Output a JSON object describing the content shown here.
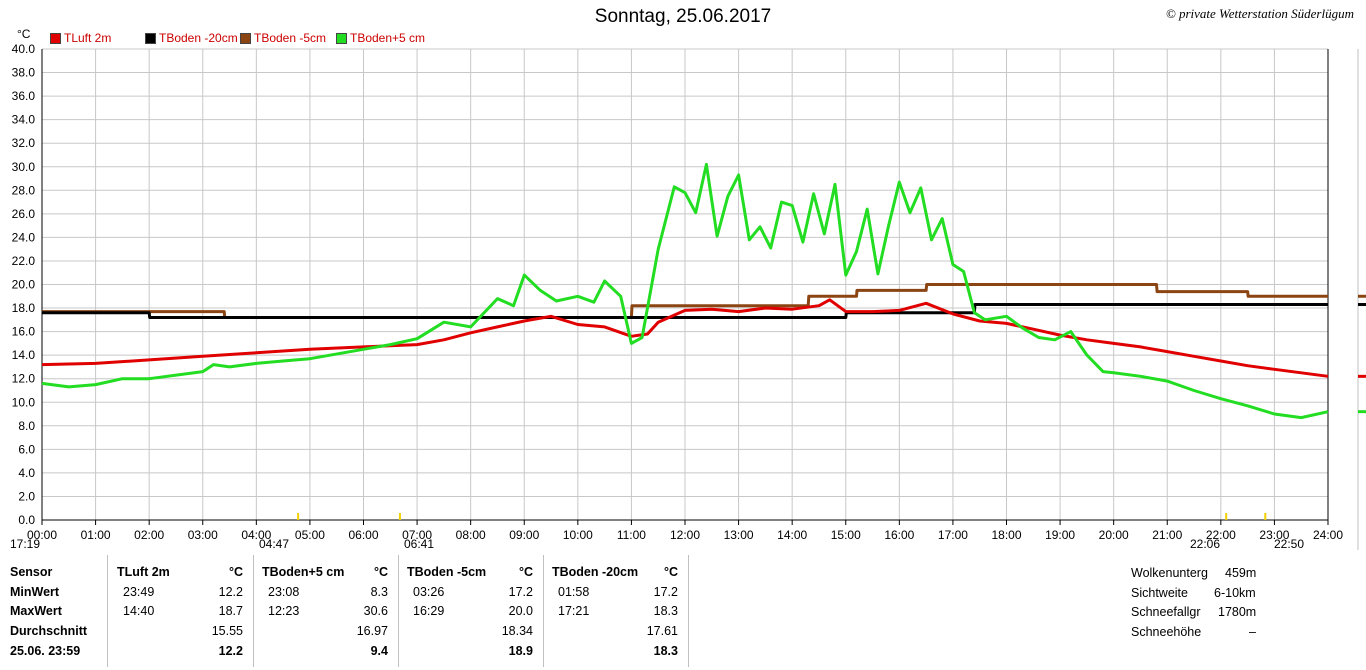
{
  "header": {
    "title": "Sonntag, 25.06.2017",
    "copyright": "© private Wetterstation Süderlügum"
  },
  "colors": {
    "tluft": "#e00000",
    "tboden20": "#000000",
    "tboden5": "#8b4513",
    "tbodenplus5": "#22dd22",
    "grid": "#c8c8c8",
    "red_text": "#cc0000"
  },
  "chart_data": {
    "type": "line",
    "ylabel": "°C",
    "ylim": [
      0,
      40
    ],
    "yticks": [
      "0.0",
      "2.0",
      "4.0",
      "6.0",
      "8.0",
      "10.0",
      "12.0",
      "14.0",
      "16.0",
      "18.0",
      "20.0",
      "22.0",
      "24.0",
      "26.0",
      "28.0",
      "30.0",
      "32.0",
      "34.0",
      "36.0",
      "38.0",
      "40.0"
    ],
    "xlim": [
      0,
      24
    ],
    "xticks": [
      "00:00",
      "01:00",
      "02:00",
      "03:00",
      "04:00",
      "05:00",
      "06:00",
      "07:00",
      "08:00",
      "09:00",
      "10:00",
      "11:00",
      "12:00",
      "13:00",
      "14:00",
      "15:00",
      "16:00",
      "17:00",
      "18:00",
      "19:00",
      "20:00",
      "21:00",
      "22:00",
      "23:00",
      "24:00"
    ],
    "grid": true,
    "legend_position": "top-left",
    "sun_events": [
      "17:19",
      "04:47",
      "06:41",
      "22:06",
      "22:50"
    ],
    "series": [
      {
        "name": "TLuft 2m",
        "x": [
          0,
          1,
          2,
          3,
          4,
          5,
          6,
          7,
          7.5,
          8,
          8.5,
          9,
          9.5,
          10,
          10.5,
          11,
          11.3,
          11.5,
          12,
          12.5,
          13,
          13.5,
          14,
          14.5,
          14.7,
          15,
          15.5,
          16,
          16.5,
          17,
          17.5,
          18,
          18.5,
          19,
          19.5,
          20,
          20.5,
          21,
          21.5,
          22,
          22.5,
          23,
          23.5,
          24
        ],
        "y": [
          13.2,
          13.3,
          13.6,
          13.9,
          14.2,
          14.5,
          14.7,
          14.9,
          15.3,
          15.9,
          16.4,
          16.9,
          17.3,
          16.6,
          16.4,
          15.6,
          15.8,
          16.8,
          17.8,
          17.9,
          17.7,
          18.0,
          17.9,
          18.2,
          18.7,
          17.7,
          17.7,
          17.8,
          18.4,
          17.5,
          16.9,
          16.7,
          16.2,
          15.7,
          15.3,
          15.0,
          14.7,
          14.3,
          13.9,
          13.5,
          13.1,
          12.8,
          12.5,
          12.2
        ]
      },
      {
        "name": "TBoden -20cm",
        "x": [
          0,
          2,
          2.01,
          15,
          15.01,
          17.4,
          17.41,
          24
        ],
        "y": [
          17.6,
          17.6,
          17.2,
          17.2,
          17.6,
          17.6,
          18.3,
          18.3
        ]
      },
      {
        "name": "TBoden -5cm",
        "x": [
          0,
          3.4,
          3.41,
          11,
          11.01,
          14.3,
          14.31,
          15.2,
          15.21,
          16.5,
          16.51,
          20.8,
          20.81,
          22.5,
          22.51,
          24
        ],
        "y": [
          17.7,
          17.7,
          17.2,
          17.2,
          18.2,
          18.2,
          19.0,
          19.0,
          19.5,
          19.5,
          20.0,
          20.0,
          19.4,
          19.4,
          19.0,
          19.0
        ]
      },
      {
        "name": "TBoden+5 cm",
        "x": [
          0,
          0.5,
          1,
          1.5,
          2,
          3,
          3.2,
          3.5,
          4,
          4.5,
          5,
          6,
          6.5,
          7,
          7.5,
          8,
          8.5,
          8.8,
          9,
          9.3,
          9.6,
          10,
          10.3,
          10.5,
          10.8,
          11,
          11.2,
          11.5,
          11.8,
          12,
          12.2,
          12.4,
          12.6,
          12.8,
          13,
          13.2,
          13.4,
          13.6,
          13.8,
          14,
          14.2,
          14.4,
          14.6,
          14.8,
          15,
          15.2,
          15.4,
          15.6,
          15.8,
          16,
          16.2,
          16.4,
          16.6,
          16.8,
          17,
          17.2,
          17.4,
          17.6,
          18,
          18.3,
          18.6,
          18.9,
          19.2,
          19.5,
          19.8,
          20,
          20.5,
          21,
          21.5,
          22,
          22.5,
          23,
          23.5,
          24
        ],
        "y": [
          11.6,
          11.3,
          11.5,
          12.0,
          12.0,
          12.6,
          13.2,
          13.0,
          13.3,
          13.5,
          13.7,
          14.5,
          14.9,
          15.4,
          16.8,
          16.4,
          18.8,
          18.2,
          20.8,
          19.5,
          18.6,
          19.0,
          18.5,
          20.3,
          19.0,
          15.0,
          15.5,
          23.0,
          28.3,
          27.8,
          26.1,
          30.2,
          24.1,
          27.5,
          29.3,
          23.8,
          24.9,
          23.1,
          27.0,
          26.7,
          23.6,
          27.7,
          24.3,
          28.5,
          20.8,
          22.8,
          26.4,
          20.9,
          25.0,
          28.7,
          26.1,
          28.2,
          23.8,
          25.6,
          21.7,
          21.1,
          17.6,
          17.0,
          17.3,
          16.3,
          15.5,
          15.3,
          16.0,
          14.0,
          12.6,
          12.5,
          12.2,
          11.8,
          11.0,
          10.3,
          9.7,
          9.0,
          8.7,
          9.2
        ]
      }
    ]
  },
  "legend": {
    "tluft": "TLuft 2m",
    "tboden20": "TBoden -20cm",
    "tboden5": "TBoden -5cm",
    "tbodenplus5": "TBoden+5 cm"
  },
  "stats": {
    "row_labels": [
      "Sensor",
      "MinWert",
      "MaxWert",
      "Durchschnitt",
      "25.06. 23:59"
    ],
    "columns": [
      {
        "sensor": "TLuft 2m",
        "unit": "°C",
        "min_time": "23:49",
        "min_val": "12.2",
        "max_time": "14:40",
        "max_val": "18.7",
        "avg": "15.55",
        "last": "12.2"
      },
      {
        "sensor": "TBoden+5 cm",
        "unit": "°C",
        "min_time": "23:08",
        "min_val": "8.3",
        "max_time": "12:23",
        "max_val": "30.6",
        "avg": "16.97",
        "last": "9.4"
      },
      {
        "sensor": "TBoden -5cm",
        "unit": "°C",
        "min_time": "03:26",
        "min_val": "17.2",
        "max_time": "16:29",
        "max_val": "20.0",
        "avg": "18.34",
        "last": "18.9"
      },
      {
        "sensor": "TBoden -20cm",
        "unit": "°C",
        "min_time": "01:58",
        "min_val": "17.2",
        "max_time": "17:21",
        "max_val": "18.3",
        "avg": "17.61",
        "last": "18.3"
      }
    ],
    "extra": [
      {
        "label": "Wolkenunterg",
        "value": "459m"
      },
      {
        "label": "Sichtweite",
        "value": "6-10km"
      },
      {
        "label": "Schneefallgr",
        "value": "1780m"
      },
      {
        "label": "Schneehöhe",
        "value": "–"
      }
    ]
  }
}
